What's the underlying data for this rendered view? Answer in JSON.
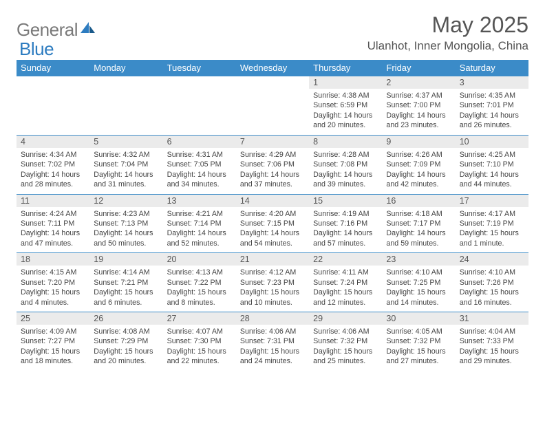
{
  "brand": {
    "part1": "General",
    "part2": "Blue"
  },
  "title": "May 2025",
  "subtitle": "Ulanhot, Inner Mongolia, China",
  "colors": {
    "header_bg": "#3b8bc8",
    "header_text": "#ffffff",
    "daynum_bg": "#ebebeb",
    "border": "#3b8bc8",
    "title_color": "#555555",
    "logo_gray": "#7a7a7a",
    "logo_blue": "#2d7cc0"
  },
  "day_headers": [
    "Sunday",
    "Monday",
    "Tuesday",
    "Wednesday",
    "Thursday",
    "Friday",
    "Saturday"
  ],
  "weeks": [
    [
      null,
      null,
      null,
      null,
      {
        "n": "1",
        "sr": "4:38 AM",
        "ss": "6:59 PM",
        "dl": "14 hours and 20 minutes."
      },
      {
        "n": "2",
        "sr": "4:37 AM",
        "ss": "7:00 PM",
        "dl": "14 hours and 23 minutes."
      },
      {
        "n": "3",
        "sr": "4:35 AM",
        "ss": "7:01 PM",
        "dl": "14 hours and 26 minutes."
      }
    ],
    [
      {
        "n": "4",
        "sr": "4:34 AM",
        "ss": "7:02 PM",
        "dl": "14 hours and 28 minutes."
      },
      {
        "n": "5",
        "sr": "4:32 AM",
        "ss": "7:04 PM",
        "dl": "14 hours and 31 minutes."
      },
      {
        "n": "6",
        "sr": "4:31 AM",
        "ss": "7:05 PM",
        "dl": "14 hours and 34 minutes."
      },
      {
        "n": "7",
        "sr": "4:29 AM",
        "ss": "7:06 PM",
        "dl": "14 hours and 37 minutes."
      },
      {
        "n": "8",
        "sr": "4:28 AM",
        "ss": "7:08 PM",
        "dl": "14 hours and 39 minutes."
      },
      {
        "n": "9",
        "sr": "4:26 AM",
        "ss": "7:09 PM",
        "dl": "14 hours and 42 minutes."
      },
      {
        "n": "10",
        "sr": "4:25 AM",
        "ss": "7:10 PM",
        "dl": "14 hours and 44 minutes."
      }
    ],
    [
      {
        "n": "11",
        "sr": "4:24 AM",
        "ss": "7:11 PM",
        "dl": "14 hours and 47 minutes."
      },
      {
        "n": "12",
        "sr": "4:23 AM",
        "ss": "7:13 PM",
        "dl": "14 hours and 50 minutes."
      },
      {
        "n": "13",
        "sr": "4:21 AM",
        "ss": "7:14 PM",
        "dl": "14 hours and 52 minutes."
      },
      {
        "n": "14",
        "sr": "4:20 AM",
        "ss": "7:15 PM",
        "dl": "14 hours and 54 minutes."
      },
      {
        "n": "15",
        "sr": "4:19 AM",
        "ss": "7:16 PM",
        "dl": "14 hours and 57 minutes."
      },
      {
        "n": "16",
        "sr": "4:18 AM",
        "ss": "7:17 PM",
        "dl": "14 hours and 59 minutes."
      },
      {
        "n": "17",
        "sr": "4:17 AM",
        "ss": "7:19 PM",
        "dl": "15 hours and 1 minute."
      }
    ],
    [
      {
        "n": "18",
        "sr": "4:15 AM",
        "ss": "7:20 PM",
        "dl": "15 hours and 4 minutes."
      },
      {
        "n": "19",
        "sr": "4:14 AM",
        "ss": "7:21 PM",
        "dl": "15 hours and 6 minutes."
      },
      {
        "n": "20",
        "sr": "4:13 AM",
        "ss": "7:22 PM",
        "dl": "15 hours and 8 minutes."
      },
      {
        "n": "21",
        "sr": "4:12 AM",
        "ss": "7:23 PM",
        "dl": "15 hours and 10 minutes."
      },
      {
        "n": "22",
        "sr": "4:11 AM",
        "ss": "7:24 PM",
        "dl": "15 hours and 12 minutes."
      },
      {
        "n": "23",
        "sr": "4:10 AM",
        "ss": "7:25 PM",
        "dl": "15 hours and 14 minutes."
      },
      {
        "n": "24",
        "sr": "4:10 AM",
        "ss": "7:26 PM",
        "dl": "15 hours and 16 minutes."
      }
    ],
    [
      {
        "n": "25",
        "sr": "4:09 AM",
        "ss": "7:27 PM",
        "dl": "15 hours and 18 minutes."
      },
      {
        "n": "26",
        "sr": "4:08 AM",
        "ss": "7:29 PM",
        "dl": "15 hours and 20 minutes."
      },
      {
        "n": "27",
        "sr": "4:07 AM",
        "ss": "7:30 PM",
        "dl": "15 hours and 22 minutes."
      },
      {
        "n": "28",
        "sr": "4:06 AM",
        "ss": "7:31 PM",
        "dl": "15 hours and 24 minutes."
      },
      {
        "n": "29",
        "sr": "4:06 AM",
        "ss": "7:32 PM",
        "dl": "15 hours and 25 minutes."
      },
      {
        "n": "30",
        "sr": "4:05 AM",
        "ss": "7:32 PM",
        "dl": "15 hours and 27 minutes."
      },
      {
        "n": "31",
        "sr": "4:04 AM",
        "ss": "7:33 PM",
        "dl": "15 hours and 29 minutes."
      }
    ]
  ],
  "labels": {
    "sunrise": "Sunrise:",
    "sunset": "Sunset:",
    "daylight": "Daylight:"
  }
}
